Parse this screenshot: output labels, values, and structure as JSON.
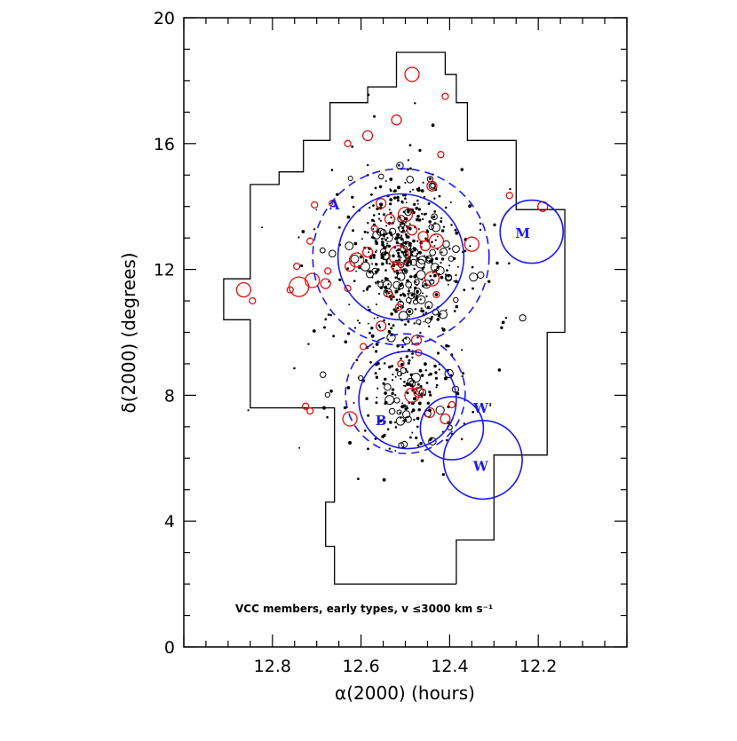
{
  "chart_data": {
    "type": "scatter",
    "title": "",
    "xlabel": "α(2000) (hours)",
    "ylabel": "δ(2000) (degrees)",
    "xlim": [
      13.0,
      12.0
    ],
    "ylim": [
      0,
      20
    ],
    "x_inverted": true,
    "x_ticks": [
      "12.8",
      "12.6",
      "12.4",
      "12.2"
    ],
    "x_tick_values": [
      12.8,
      12.6,
      12.4,
      12.2
    ],
    "y_ticks": [
      "0",
      "4",
      "8",
      "12",
      "16",
      "20"
    ],
    "y_tick_values": [
      0,
      4,
      8,
      12,
      16,
      20
    ],
    "annotation": "VCC members, early types, v ≤3000 km s⁻¹",
    "colors": {
      "galaxies_black": "#000000",
      "galaxies_red": "#dd1111",
      "regions": "#1a1aee",
      "boundary": "#000000"
    },
    "survey_boundary": [
      [
        12.385,
        2.0
      ],
      [
        12.385,
        3.4
      ],
      [
        12.3,
        3.4
      ],
      [
        12.3,
        6.1
      ],
      [
        12.18,
        6.1
      ],
      [
        12.18,
        10.0
      ],
      [
        12.14,
        10.0
      ],
      [
        12.14,
        13.9
      ],
      [
        12.25,
        13.9
      ],
      [
        12.25,
        16.1
      ],
      [
        12.36,
        16.1
      ],
      [
        12.36,
        17.3
      ],
      [
        12.385,
        17.3
      ],
      [
        12.385,
        18.2
      ],
      [
        12.41,
        18.2
      ],
      [
        12.41,
        18.9
      ],
      [
        12.52,
        18.9
      ],
      [
        12.52,
        17.8
      ],
      [
        12.585,
        17.8
      ],
      [
        12.585,
        17.3
      ],
      [
        12.67,
        17.3
      ],
      [
        12.67,
        16.1
      ],
      [
        12.73,
        16.1
      ],
      [
        12.73,
        15.1
      ],
      [
        12.785,
        15.1
      ],
      [
        12.785,
        14.7
      ],
      [
        12.85,
        14.7
      ],
      [
        12.85,
        11.7
      ],
      [
        12.91,
        11.7
      ],
      [
        12.91,
        10.4
      ],
      [
        12.85,
        10.4
      ],
      [
        12.85,
        7.6
      ],
      [
        12.66,
        7.6
      ],
      [
        12.66,
        4.6
      ],
      [
        12.68,
        4.6
      ],
      [
        12.68,
        3.2
      ],
      [
        12.66,
        3.2
      ],
      [
        12.66,
        2.0
      ],
      [
        12.385,
        2.0
      ]
    ],
    "regions": [
      {
        "label": "A",
        "ra": 12.51,
        "dec": 12.4,
        "radius_deg": 2.0,
        "style": "solid",
        "label_ra": 12.66,
        "label_dec": 13.9
      },
      {
        "label": "",
        "ra": 12.51,
        "dec": 12.4,
        "radius_deg": 2.8,
        "style": "dashed",
        "label_ra": null,
        "label_dec": null
      },
      {
        "label": "B",
        "ra": 12.495,
        "dec": 7.85,
        "radius_deg": 1.55,
        "style": "solid",
        "label_ra": 12.555,
        "label_dec": 7.05
      },
      {
        "label": "",
        "ra": 12.5,
        "dec": 8.05,
        "radius_deg": 1.9,
        "style": "dashed",
        "label_ra": null,
        "label_dec": null
      },
      {
        "label": "M",
        "ra": 12.215,
        "dec": 13.2,
        "radius_deg": 1.0,
        "style": "solid",
        "label_ra": 12.235,
        "label_dec": 13.0
      },
      {
        "label": "W'",
        "ra": 12.395,
        "dec": 6.95,
        "radius_deg": 1.0,
        "style": "solid",
        "label_ra": 12.325,
        "label_dec": 7.45
      },
      {
        "label": "W",
        "ra": 12.325,
        "dec": 5.95,
        "radius_deg": 1.25,
        "style": "solid",
        "label_ra": 12.33,
        "label_dec": 5.6
      }
    ],
    "series": [
      {
        "color": "#dd1111",
        "points": [
          [
            12.485,
            18.2,
            3
          ],
          [
            12.52,
            16.75,
            2
          ],
          [
            12.585,
            16.25,
            2
          ],
          [
            12.42,
            15.65,
            1
          ],
          [
            12.63,
            16.0,
            1
          ],
          [
            12.41,
            17.5,
            1
          ],
          [
            12.665,
            14.1,
            1
          ],
          [
            12.44,
            14.65,
            2
          ],
          [
            12.555,
            14.1,
            2
          ],
          [
            12.5,
            13.75,
            3
          ],
          [
            12.485,
            13.25,
            2
          ],
          [
            12.46,
            13.05,
            2
          ],
          [
            12.43,
            12.9,
            3
          ],
          [
            12.455,
            12.75,
            2
          ],
          [
            12.515,
            12.45,
            4
          ],
          [
            12.52,
            12.1,
            2
          ],
          [
            12.585,
            12.55,
            2
          ],
          [
            12.61,
            12.3,
            3
          ],
          [
            12.625,
            12.1,
            2
          ],
          [
            12.44,
            11.7,
            3
          ],
          [
            12.43,
            11.2,
            1
          ],
          [
            12.63,
            11.4,
            1
          ],
          [
            12.68,
            11.55,
            2
          ],
          [
            12.74,
            11.45,
            4
          ],
          [
            12.71,
            11.65,
            3
          ],
          [
            12.76,
            11.35,
            1
          ],
          [
            12.865,
            11.35,
            3
          ],
          [
            12.535,
            11.2,
            1
          ],
          [
            12.515,
            10.8,
            1
          ],
          [
            12.555,
            10.2,
            2
          ],
          [
            12.475,
            9.75,
            2
          ],
          [
            12.595,
            9.55,
            1
          ],
          [
            12.47,
            9.35,
            1
          ],
          [
            12.51,
            9.0,
            1
          ],
          [
            12.47,
            8.1,
            2
          ],
          [
            12.485,
            8.0,
            3
          ],
          [
            12.445,
            7.45,
            2
          ],
          [
            12.41,
            7.25,
            2
          ],
          [
            12.395,
            7.7,
            1
          ],
          [
            12.625,
            7.25,
            3
          ],
          [
            12.715,
            7.5,
            1
          ],
          [
            12.725,
            7.65,
            1
          ],
          [
            12.715,
            12.9,
            1
          ],
          [
            12.745,
            12.1,
            1
          ],
          [
            12.675,
            11.95,
            1
          ],
          [
            12.845,
            11.0,
            1
          ],
          [
            12.705,
            14.05,
            1
          ],
          [
            12.35,
            12.8,
            3
          ],
          [
            12.265,
            14.35,
            1
          ],
          [
            12.19,
            14.0,
            2
          ],
          [
            12.57,
            13.3,
            1
          ],
          [
            12.535,
            13.6,
            2
          ]
        ]
      }
    ]
  }
}
